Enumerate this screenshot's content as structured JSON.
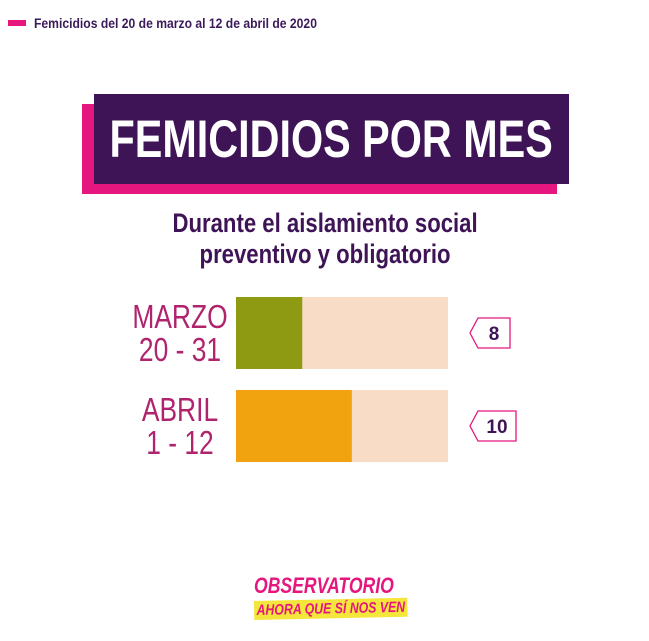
{
  "header_note": "Femicidios del 20 de marzo al 12 de abril de 2020",
  "title": "FEMICIDIOS POR MES",
  "subtitle_line1": "Durante el aislamiento social",
  "subtitle_line2": "preventivo y obligatorio",
  "logo_line1": "OBSERVATORIO",
  "logo_line2": "AHORA QUE SÍ NOS VEN",
  "colors": {
    "purple": "#3f1456",
    "magenta": "#e5177e",
    "track": "#f8dcc6",
    "olive": "#8e9a12",
    "orange": "#f0a30f"
  },
  "chart_data": {
    "type": "bar",
    "orientation": "horizontal",
    "categories": [
      {
        "label_line1": "MARZO",
        "label_line2": "20 - 31",
        "value": 8,
        "value_label": "8",
        "color": "#8e9a12"
      },
      {
        "label_line1": "ABRIL",
        "label_line2": "1 - 12",
        "value": 10,
        "value_label": "10",
        "color": "#f0a30f"
      }
    ],
    "xlim": [
      0,
      31
    ],
    "grid": false
  }
}
